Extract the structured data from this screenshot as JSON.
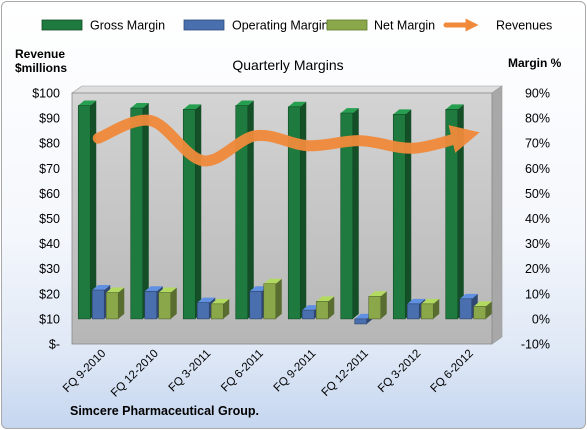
{
  "chart_data": {
    "type": "bar",
    "title": "Quarterly Margins",
    "footer": "Simcere Pharmaceutical Group.",
    "left_axis": {
      "title_line1": "Revenue",
      "title_line2": "$millions",
      "ylim": [
        0,
        100
      ],
      "ticks": [
        "$-",
        "$10",
        "$20",
        "$30",
        "$40",
        "$50",
        "$60",
        "$70",
        "$80",
        "$90",
        "$100"
      ]
    },
    "right_axis": {
      "title": "Margin %",
      "ylim": [
        -10,
        90
      ],
      "ticks": [
        "-10%",
        "0%",
        "10%",
        "20%",
        "30%",
        "40%",
        "50%",
        "60%",
        "70%",
        "80%",
        "90%"
      ]
    },
    "categories": [
      "FQ 9-2010",
      "FQ 12-2010",
      "FQ 3-2011",
      "FQ 6-2011",
      "FQ 9-2011",
      "FQ 12-2011",
      "FQ 3-2012",
      "FQ 6-2012"
    ],
    "series": [
      {
        "name": "Gross Margin",
        "type": "bar",
        "axis": "right",
        "color": "#1e7a3e",
        "values": [
          85,
          84,
          83.5,
          85,
          84.5,
          82,
          81.5,
          83.5
        ]
      },
      {
        "name": "Operating Margin",
        "type": "bar",
        "axis": "right",
        "color": "#4a6fae",
        "values": [
          11.5,
          11,
          6.5,
          11,
          3.5,
          -2,
          6,
          8
        ]
      },
      {
        "name": "Net Margin",
        "type": "bar",
        "axis": "right",
        "color": "#8aa84a",
        "values": [
          10.5,
          10.5,
          6,
          14,
          7,
          9,
          6,
          5
        ]
      },
      {
        "name": "Revenues",
        "type": "line",
        "axis": "left",
        "color": "#f08a3a",
        "values": [
          82,
          89,
          73,
          83,
          79,
          81,
          78,
          83
        ]
      }
    ],
    "legend_position": "top",
    "grid": false,
    "plot_background": "#c0c0c0",
    "left_label_color": "#000000"
  }
}
